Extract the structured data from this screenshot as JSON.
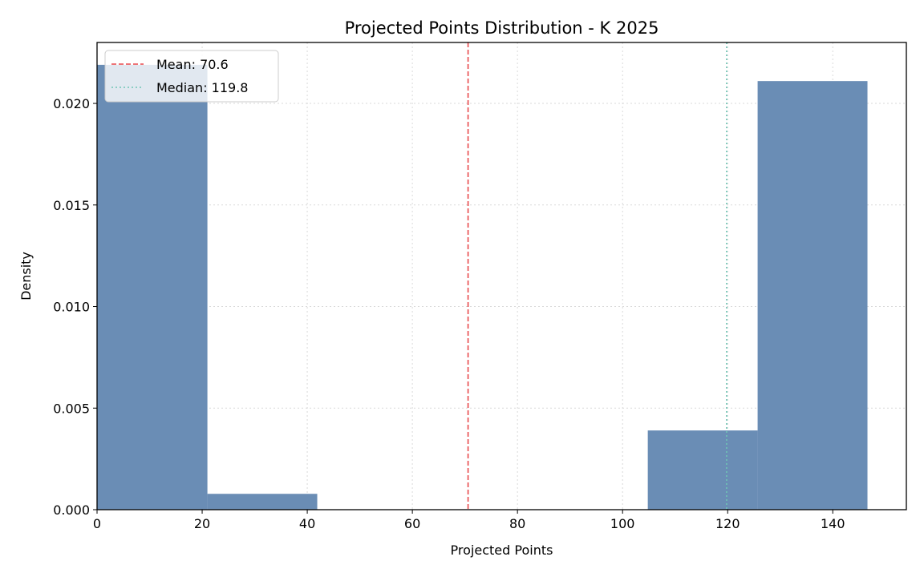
{
  "chart_data": {
    "type": "histogram",
    "title": "Projected Points Distribution - K 2025",
    "xlabel": "Projected Points",
    "ylabel": "Density",
    "xlim": [
      0,
      154
    ],
    "ylim": [
      0,
      0.023
    ],
    "xticks": [
      0,
      20,
      40,
      60,
      80,
      100,
      120,
      140
    ],
    "yticks": [
      0.0,
      0.005,
      0.01,
      0.015,
      0.02
    ],
    "ytick_labels": [
      "0.000",
      "0.005",
      "0.010",
      "0.015",
      "0.020"
    ],
    "grid": true,
    "legend_position": "top-left",
    "bins": [
      {
        "x0": 0.0,
        "x1": 21.0,
        "density": 0.0219
      },
      {
        "x0": 21.0,
        "x1": 41.9,
        "density": 0.00078
      },
      {
        "x0": 41.9,
        "x1": 62.8,
        "density": 0
      },
      {
        "x0": 62.8,
        "x1": 83.8,
        "density": 0
      },
      {
        "x0": 83.8,
        "x1": 104.8,
        "density": 0
      },
      {
        "x0": 104.8,
        "x1": 125.7,
        "density": 0.0039
      },
      {
        "x0": 125.7,
        "x1": 146.6,
        "density": 0.0211
      }
    ],
    "bar_color": "#6a8db5",
    "reference_lines": [
      {
        "label": "Mean: 70.6",
        "x": 70.6,
        "color": "#e8474a",
        "style": "dashed"
      },
      {
        "label": "Median: 119.8",
        "x": 119.8,
        "color": "#6ec4b4",
        "style": "dotted"
      }
    ]
  }
}
